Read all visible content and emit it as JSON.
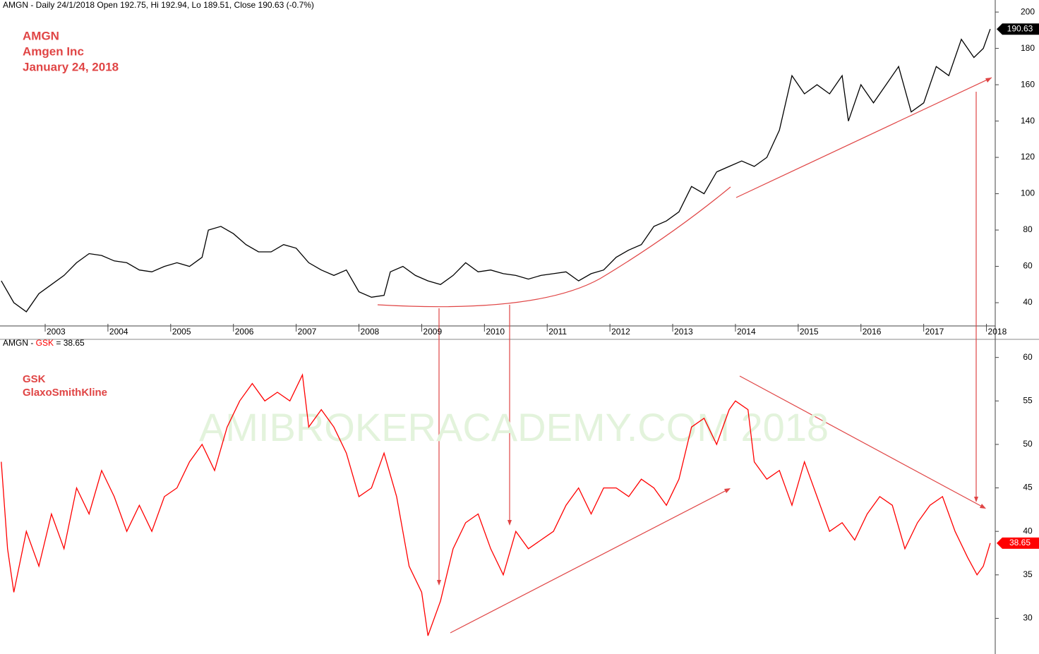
{
  "chart_data": [
    {
      "type": "line",
      "header": "AMGN - Daily 24/1/2018 Open 192.75, Hi 192.94, Lo 189.51, Close 190.63 (-0.7%)",
      "annotations": [
        "AMGN",
        "Amgen Inc",
        "January 24, 2018"
      ],
      "xlim": [
        2002.28,
        2018.14
      ],
      "xticks": [
        2003,
        2004,
        2005,
        2006,
        2007,
        2008,
        2009,
        2010,
        2011,
        2012,
        2013,
        2014,
        2015,
        2016,
        2017,
        2018
      ],
      "ylim": [
        27.2,
        204.7
      ],
      "yticks": [
        40,
        60,
        80,
        100,
        120,
        140,
        160,
        180,
        200
      ],
      "series": [
        {
          "name": "AMGN",
          "color": "#000000",
          "last_label": "190.63",
          "x": [
            2002.3,
            2002.5,
            2002.7,
            2002.9,
            2003.1,
            2003.3,
            2003.5,
            2003.7,
            2003.9,
            2004.1,
            2004.3,
            2004.5,
            2004.7,
            2004.9,
            2005.1,
            2005.3,
            2005.5,
            2005.6,
            2005.8,
            2006.0,
            2006.2,
            2006.4,
            2006.6,
            2006.8,
            2007.0,
            2007.2,
            2007.4,
            2007.6,
            2007.8,
            2008.0,
            2008.2,
            2008.4,
            2008.5,
            2008.7,
            2008.9,
            2009.1,
            2009.3,
            2009.5,
            2009.7,
            2009.9,
            2010.1,
            2010.3,
            2010.5,
            2010.7,
            2010.9,
            2011.1,
            2011.3,
            2011.5,
            2011.7,
            2011.9,
            2012.1,
            2012.3,
            2012.5,
            2012.7,
            2012.9,
            2013.1,
            2013.3,
            2013.5,
            2013.7,
            2013.9,
            2014.1,
            2014.3,
            2014.5,
            2014.7,
            2014.9,
            2015.1,
            2015.3,
            2015.5,
            2015.7,
            2015.8,
            2016.0,
            2016.2,
            2016.4,
            2016.6,
            2016.8,
            2017.0,
            2017.2,
            2017.4,
            2017.6,
            2017.8,
            2017.95,
            2018.06
          ],
          "values": [
            52,
            40,
            35,
            45,
            50,
            55,
            62,
            67,
            66,
            63,
            62,
            58,
            57,
            60,
            62,
            60,
            65,
            80,
            82,
            78,
            72,
            68,
            68,
            72,
            70,
            62,
            58,
            55,
            58,
            46,
            43,
            44,
            57,
            60,
            55,
            52,
            50,
            55,
            62,
            57,
            58,
            56,
            55,
            53,
            55,
            56,
            57,
            52,
            56,
            58,
            65,
            69,
            72,
            82,
            85,
            90,
            104,
            100,
            112,
            115,
            118,
            115,
            120,
            135,
            165,
            155,
            160,
            155,
            165,
            140,
            160,
            150,
            160,
            170,
            145,
            150,
            170,
            165,
            185,
            175,
            180,
            190.63
          ]
        }
      ]
    },
    {
      "type": "line",
      "header": "AMGN - ",
      "header_symbol": "GSK",
      "header_value": " = 38.65",
      "annotations": [
        "GSK",
        "GlaxoSmithKline"
      ],
      "watermark": "AMIBROKERACADEMY.COM  2018",
      "xlim": [
        2002.28,
        2018.14
      ],
      "ylim": [
        25.9,
        62
      ],
      "yticks": [
        30,
        35,
        40,
        45,
        50,
        55,
        60
      ],
      "series": [
        {
          "name": "GSK",
          "color": "#ff0000",
          "last_label": "38.65",
          "x": [
            2002.3,
            2002.4,
            2002.5,
            2002.7,
            2002.9,
            2003.1,
            2003.3,
            2003.5,
            2003.7,
            2003.9,
            2004.1,
            2004.3,
            2004.5,
            2004.7,
            2004.9,
            2005.1,
            2005.3,
            2005.5,
            2005.7,
            2005.9,
            2006.1,
            2006.3,
            2006.5,
            2006.7,
            2006.9,
            2007.1,
            2007.2,
            2007.4,
            2007.6,
            2007.8,
            2008.0,
            2008.2,
            2008.4,
            2008.6,
            2008.8,
            2009.0,
            2009.1,
            2009.3,
            2009.5,
            2009.7,
            2009.9,
            2010.1,
            2010.3,
            2010.5,
            2010.7,
            2010.9,
            2011.1,
            2011.3,
            2011.5,
            2011.7,
            2011.9,
            2012.1,
            2012.3,
            2012.5,
            2012.7,
            2012.9,
            2013.1,
            2013.3,
            2013.5,
            2013.7,
            2013.9,
            2014.0,
            2014.2,
            2014.3,
            2014.5,
            2014.7,
            2014.9,
            2015.1,
            2015.3,
            2015.5,
            2015.7,
            2015.9,
            2016.1,
            2016.3,
            2016.5,
            2016.7,
            2016.9,
            2017.1,
            2017.3,
            2017.5,
            2017.7,
            2017.85,
            2017.95,
            2018.06
          ],
          "values": [
            48,
            38,
            33,
            40,
            36,
            42,
            38,
            45,
            42,
            47,
            44,
            40,
            43,
            40,
            44,
            45,
            48,
            50,
            47,
            52,
            55,
            57,
            55,
            56,
            55,
            58,
            52,
            54,
            52,
            49,
            44,
            45,
            49,
            44,
            36,
            33,
            28,
            32,
            38,
            41,
            42,
            38,
            35,
            40,
            38,
            39,
            40,
            43,
            45,
            42,
            45,
            45,
            44,
            46,
            45,
            43,
            46,
            52,
            53,
            50,
            54,
            55,
            54,
            48,
            46,
            47,
            43,
            48,
            44,
            40,
            41,
            39,
            42,
            44,
            43,
            38,
            41,
            43,
            44,
            40,
            37,
            35,
            36,
            38.65
          ]
        }
      ]
    }
  ]
}
